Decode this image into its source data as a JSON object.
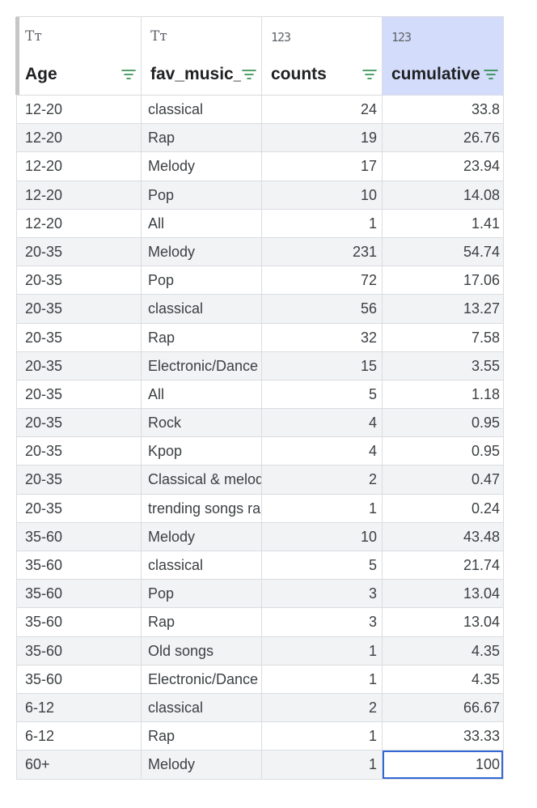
{
  "table": {
    "columns": [
      {
        "type_icon": "Tт",
        "type": "text",
        "name": "Age"
      },
      {
        "type_icon": "Tт",
        "type": "text",
        "name": "fav_music_"
      },
      {
        "type_icon": "123",
        "type": "number",
        "name": "counts"
      },
      {
        "type_icon": "123",
        "type": "number",
        "name": "cumulative"
      }
    ],
    "rows": [
      [
        "12-20",
        "classical",
        "24",
        "33.8"
      ],
      [
        "12-20",
        "Rap",
        "19",
        "26.76"
      ],
      [
        "12-20",
        "Melody",
        "17",
        "23.94"
      ],
      [
        "12-20",
        "Pop",
        "10",
        "14.08"
      ],
      [
        "12-20",
        "All",
        "1",
        "1.41"
      ],
      [
        "20-35",
        "Melody",
        "231",
        "54.74"
      ],
      [
        "20-35",
        "Pop",
        "72",
        "17.06"
      ],
      [
        "20-35",
        "classical",
        "56",
        "13.27"
      ],
      [
        "20-35",
        "Rap",
        "32",
        "7.58"
      ],
      [
        "20-35",
        "Electronic/Dance",
        "15",
        "3.55"
      ],
      [
        "20-35",
        "All",
        "5",
        "1.18"
      ],
      [
        "20-35",
        "Rock",
        "4",
        "0.95"
      ],
      [
        "20-35",
        "Kpop",
        "4",
        "0.95"
      ],
      [
        "20-35",
        "Classical & melody",
        "2",
        "0.47"
      ],
      [
        "20-35",
        "trending songs random",
        "1",
        "0.24"
      ],
      [
        "35-60",
        "Melody",
        "10",
        "43.48"
      ],
      [
        "35-60",
        "classical",
        "5",
        "21.74"
      ],
      [
        "35-60",
        "Pop",
        "3",
        "13.04"
      ],
      [
        "35-60",
        "Rap",
        "3",
        "13.04"
      ],
      [
        "35-60",
        "Old songs",
        "1",
        "4.35"
      ],
      [
        "35-60",
        "Electronic/Dance",
        "1",
        "4.35"
      ],
      [
        "6-12",
        "classical",
        "2",
        "66.67"
      ],
      [
        "6-12",
        "Rap",
        "1",
        "33.33"
      ],
      [
        "60+",
        "Melody",
        "1",
        "100"
      ]
    ]
  },
  "colors": {
    "filter_icon": "#188038",
    "active_header": "#d3dcfb",
    "selection_border": "#3367d6"
  },
  "icons": {
    "filter": "filter-icon",
    "text_type": "text-type-icon",
    "number_type": "number-type-icon"
  }
}
